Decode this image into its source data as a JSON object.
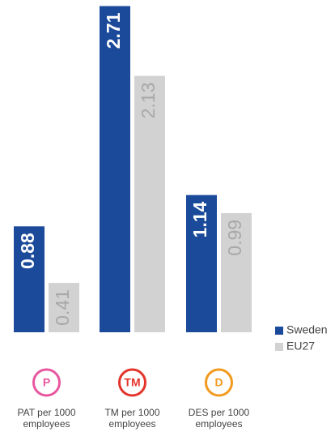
{
  "chart_data": {
    "type": "bar",
    "categories": [
      "PAT per 1000 employees",
      "TM per 1000 employees",
      "DES per 1000 employees"
    ],
    "icons": [
      {
        "label": "P",
        "color": "#e8569f"
      },
      {
        "label": "TM",
        "color": "#e3342b"
      },
      {
        "label": "D",
        "color": "#f29a1e"
      }
    ],
    "series": [
      {
        "name": "Sweden",
        "color": "#1b4a9b",
        "values": [
          0.88,
          2.71,
          1.14
        ]
      },
      {
        "name": "EU27",
        "color": "#d2d2d2",
        "values": [
          0.41,
          2.13,
          0.99
        ]
      }
    ],
    "ylim": [
      0,
      2.72
    ],
    "legend": "bottom-right"
  }
}
